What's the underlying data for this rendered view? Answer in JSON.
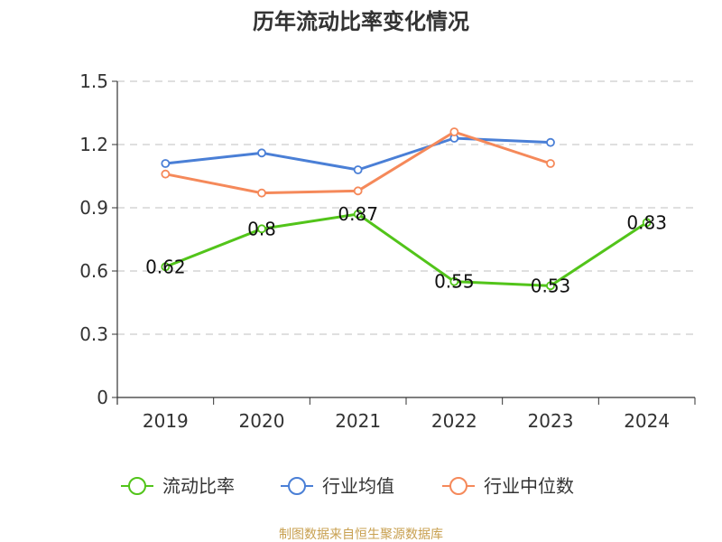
{
  "chart_data": {
    "type": "line",
    "title": "历年流动比率变化情况",
    "categories": [
      "2019",
      "2020",
      "2021",
      "2022",
      "2023",
      "2024"
    ],
    "ylim": [
      0,
      1.5
    ],
    "yticks": [
      "0",
      "0.3",
      "0.6",
      "0.9",
      "1.2",
      "1.5"
    ],
    "grid": true,
    "legend_position": "bottom",
    "series": [
      {
        "name": "流动比率",
        "color": "#52c41a",
        "values": [
          0.62,
          0.8,
          0.87,
          0.55,
          0.53,
          0.83
        ],
        "labels": [
          "0.62",
          "0.8",
          "0.87",
          "0.55",
          "0.53",
          "0.83"
        ]
      },
      {
        "name": "行业均值",
        "color": "#4a7fd6",
        "values": [
          1.11,
          1.16,
          1.08,
          1.23,
          1.21,
          null
        ]
      },
      {
        "name": "行业中位数",
        "color": "#f5895a",
        "values": [
          1.06,
          0.97,
          0.98,
          1.26,
          1.11,
          null
        ]
      }
    ]
  },
  "source": {
    "text": "制图数据来自恒生聚源数据库",
    "color": "#c8a050"
  }
}
